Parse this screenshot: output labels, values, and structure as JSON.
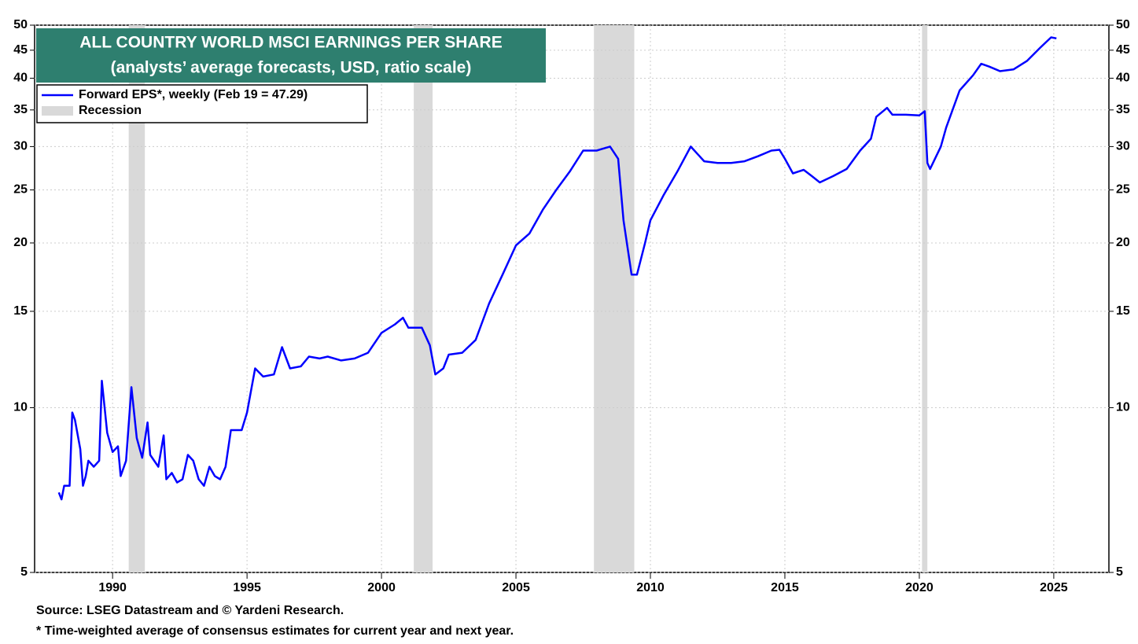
{
  "chart_data": {
    "type": "line",
    "title": "ALL COUNTRY WORLD MSCI EARNINGS PER SHARE",
    "subtitle": "(analysts’ average forecasts, USD, ratio scale)",
    "source": "Source: LSEG Datastream and © Yardeni Research.",
    "footnote": "* Time-weighted average of consensus estimates for current year and next year.",
    "log_scale": true,
    "grid": true,
    "legend": "upper left",
    "recession_label": "Recession",
    "recession_color": "#d9d9d9",
    "recessions": [
      [
        1990.6,
        1991.2
      ],
      [
        2001.2,
        2001.9
      ],
      [
        2007.9,
        2009.4
      ],
      [
        2020.1,
        2020.3
      ]
    ],
    "xlim": [
      1987.1,
      2027.05
    ],
    "xticks": [
      1990,
      1995,
      2000,
      2005,
      2010,
      2015,
      2020,
      2025
    ],
    "ylim": [
      5,
      50
    ],
    "yticks": [
      5,
      10,
      15,
      20,
      25,
      30,
      35,
      40,
      45,
      50
    ],
    "x": [
      1988.0,
      1988.1,
      1988.2,
      1988.4,
      1988.5,
      1988.6,
      1988.8,
      1988.9,
      1989.0,
      1989.1,
      1989.3,
      1989.5,
      1989.6,
      1989.8,
      1990.0,
      1990.2,
      1990.3,
      1990.5,
      1990.7,
      1990.9,
      1991.1,
      1991.3,
      1991.4,
      1991.7,
      1991.9,
      1992.0,
      1992.2,
      1992.4,
      1992.6,
      1992.8,
      1993.0,
      1993.2,
      1993.4,
      1993.6,
      1993.8,
      1994.0,
      1994.2,
      1994.4,
      1994.8,
      1995.0,
      1995.3,
      1995.6,
      1996.0,
      1996.3,
      1996.6,
      1997.0,
      1997.3,
      1997.7,
      1998.0,
      1998.5,
      1999.0,
      1999.5,
      2000.0,
      2000.5,
      2000.8,
      2001.0,
      2001.5,
      2001.8,
      2002.0,
      2002.3,
      2002.5,
      2003.0,
      2003.5,
      2004.0,
      2004.5,
      2005.0,
      2005.5,
      2006.0,
      2006.5,
      2007.0,
      2007.5,
      2008.0,
      2008.5,
      2008.8,
      2009.0,
      2009.3,
      2009.5,
      2009.8,
      2010.0,
      2010.5,
      2011.0,
      2011.5,
      2012.0,
      2012.5,
      2013.0,
      2013.5,
      2014.0,
      2014.5,
      2014.8,
      2015.0,
      2015.3,
      2015.7,
      2016.0,
      2016.3,
      2016.8,
      2017.3,
      2017.8,
      2018.2,
      2018.4,
      2018.8,
      2019.0,
      2019.5,
      2020.0,
      2020.2,
      2020.3,
      2020.4,
      2020.8,
      2021.0,
      2021.5,
      2022.0,
      2022.3,
      2022.6,
      2023.0,
      2023.5,
      2024.0,
      2024.5,
      2024.9,
      2025.1
    ],
    "series": [
      {
        "name": "Forward EPS*, weekly (Feb 19 = 47.29)",
        "color": "#0000ff",
        "values": [
          7.0,
          6.8,
          7.2,
          7.2,
          9.8,
          9.5,
          8.4,
          7.2,
          7.5,
          8.0,
          7.8,
          8.0,
          11.2,
          9.0,
          8.3,
          8.5,
          7.5,
          8.0,
          10.9,
          8.8,
          8.1,
          9.4,
          8.2,
          7.8,
          8.9,
          7.4,
          7.6,
          7.3,
          7.4,
          8.2,
          8.0,
          7.4,
          7.2,
          7.8,
          7.5,
          7.4,
          7.8,
          9.1,
          9.1,
          9.8,
          11.8,
          11.4,
          11.5,
          12.9,
          11.8,
          11.9,
          12.4,
          12.3,
          12.4,
          12.2,
          12.3,
          12.6,
          13.7,
          14.2,
          14.6,
          14.0,
          14.0,
          13.0,
          11.5,
          11.8,
          12.5,
          12.6,
          13.3,
          15.5,
          17.5,
          19.8,
          20.8,
          23.0,
          25.0,
          27.0,
          29.5,
          29.5,
          30.0,
          28.5,
          22.0,
          17.5,
          17.5,
          20.0,
          22.0,
          24.5,
          27.0,
          30.0,
          28.2,
          28.0,
          28.0,
          28.2,
          28.8,
          29.5,
          29.6,
          28.5,
          26.8,
          27.2,
          26.5,
          25.8,
          26.5,
          27.3,
          29.5,
          31.0,
          34.0,
          35.3,
          34.3,
          34.3,
          34.2,
          34.8,
          28.0,
          27.3,
          30.0,
          32.5,
          38.0,
          40.5,
          42.5,
          42.0,
          41.2,
          41.5,
          43.0,
          45.5,
          47.5,
          47.29
        ]
      }
    ]
  }
}
